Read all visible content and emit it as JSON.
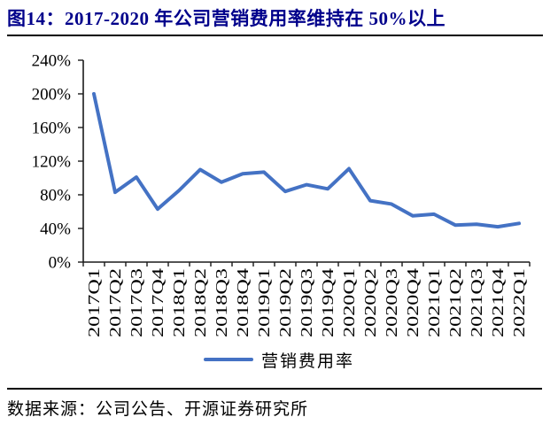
{
  "header": {
    "title": "图14：2017-2020 年公司营销费用率维持在 50%以上"
  },
  "chart_data": {
    "type": "line",
    "title": "图14：2017-2020 年公司营销费用率维持在 50%以上",
    "categories": [
      "2017Q1",
      "2017Q2",
      "2017Q3",
      "2017Q4",
      "2018Q1",
      "2018Q2",
      "2018Q3",
      "2018Q4",
      "2019Q1",
      "2019Q2",
      "2019Q3",
      "2019Q4",
      "2020Q1",
      "2020Q2",
      "2020Q3",
      "2020Q4",
      "2021Q1",
      "2021Q2",
      "2021Q3",
      "2021Q4",
      "2022Q1"
    ],
    "series": [
      {
        "name": "营销费用率",
        "color": "#4472C4",
        "values": [
          200,
          83,
          101,
          63,
          85,
          110,
          95,
          105,
          107,
          84,
          92,
          87,
          111,
          73,
          69,
          55,
          57,
          44,
          45,
          42,
          46
        ]
      }
    ],
    "xlabel": "",
    "ylabel": "",
    "ylim": [
      0,
      240
    ],
    "ytick_step": 40,
    "yticks": [
      "0%",
      "40%",
      "80%",
      "120%",
      "160%",
      "200%",
      "240%"
    ],
    "grid": false,
    "legend_position": "bottom"
  },
  "footer": {
    "source": "数据来源：公司公告、开源证券研究所"
  },
  "colors": {
    "title_text": "#00008B",
    "series_line": "#4472C4",
    "axis": "#1a1a1a",
    "rule": "#000000"
  }
}
